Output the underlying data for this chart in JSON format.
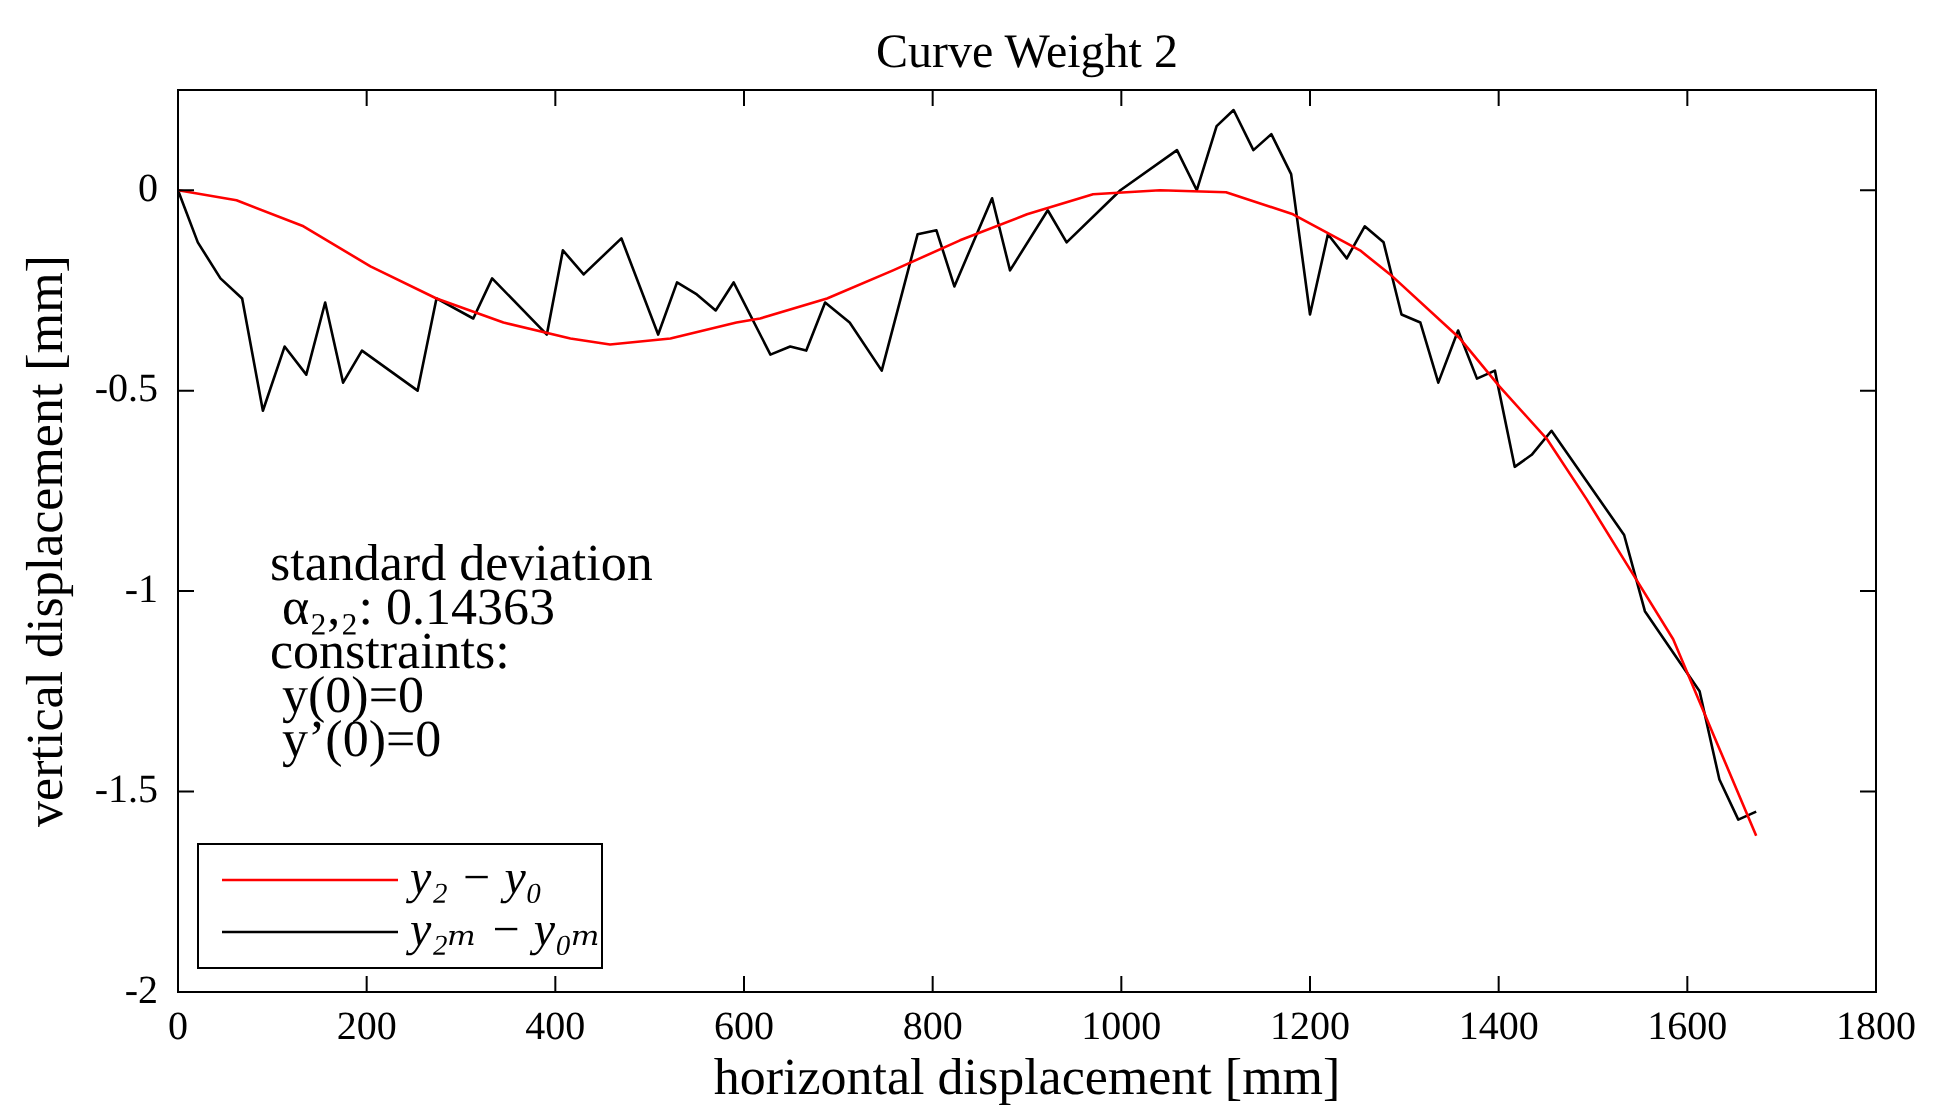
{
  "chart_data": {
    "type": "line",
    "title": "Curve Weight 2",
    "xlabel": "horizontal displacement [mm]",
    "ylabel": "vertical displacement [mm]",
    "xlim": [
      0,
      1800
    ],
    "ylim": [
      -2,
      0.25
    ],
    "xticks": [
      0,
      200,
      400,
      600,
      800,
      1000,
      1200,
      1400,
      1600,
      1800
    ],
    "yticks": [
      -2,
      -1.5,
      -1,
      -0.5,
      0
    ],
    "grid": false,
    "legend": "bottom left",
    "marker": "none",
    "line_style": "solid",
    "annotations": [
      "standard deviation",
      "α₂,₂: 0.14363",
      "constraints:",
      "y(0)=0",
      "y’(0)=0"
    ],
    "series": [
      {
        "name": "y₂ − y₀",
        "color": "#ff0000",
        "x": [
          0,
          62,
          133,
          204,
          274,
          345,
          416,
          458,
          522,
          592,
          617,
          688,
          758,
          829,
          900,
          970,
          1041,
          1111,
          1182,
          1253,
          1285,
          1359,
          1401,
          1451,
          1493,
          1543,
          1585,
          1628,
          1673
        ],
        "values": [
          0,
          -0.025,
          -0.09,
          -0.19,
          -0.27,
          -0.33,
          -0.37,
          -0.385,
          -0.37,
          -0.33,
          -0.32,
          -0.27,
          -0.2,
          -0.125,
          -0.06,
          -0.01,
          0,
          -0.005,
          -0.06,
          -0.15,
          -0.21,
          -0.37,
          -0.49,
          -0.62,
          -0.77,
          -0.96,
          -1.12,
          -1.36,
          -1.61
        ]
      },
      {
        "name": "y₂ₘ − y₀ₘ",
        "color": "#000000",
        "x": [
          0,
          21,
          45,
          68,
          90,
          113,
          136,
          156,
          175,
          195,
          254,
          274,
          313,
          333,
          391,
          408,
          430,
          470,
          509,
          529,
          550,
          570,
          589,
          628,
          649,
          666,
          686,
          712,
          746,
          784,
          804,
          823,
          863,
          882,
          922,
          942,
          999,
          1059,
          1080,
          1101,
          1119,
          1140,
          1159,
          1180,
          1200,
          1219,
          1239,
          1258,
          1278,
          1297,
          1317,
          1336,
          1357,
          1377,
          1396,
          1417,
          1435,
          1456,
          1533,
          1555,
          1613,
          1634,
          1654,
          1673
        ],
        "values": [
          0,
          -0.13,
          -0.22,
          -0.27,
          -0.55,
          -0.39,
          -0.46,
          -0.28,
          -0.48,
          -0.4,
          -0.5,
          -0.27,
          -0.32,
          -0.22,
          -0.36,
          -0.15,
          -0.21,
          -0.12,
          -0.36,
          -0.23,
          -0.26,
          -0.3,
          -0.23,
          -0.41,
          -0.39,
          -0.4,
          -0.28,
          -0.33,
          -0.45,
          -0.11,
          -0.1,
          -0.24,
          -0.02,
          -0.2,
          -0.05,
          -0.13,
          0,
          0.1,
          0,
          0.16,
          0.2,
          0.1,
          0.14,
          0.04,
          -0.31,
          -0.11,
          -0.17,
          -0.09,
          -0.13,
          -0.31,
          -0.33,
          -0.48,
          -0.35,
          -0.47,
          -0.45,
          -0.69,
          -0.66,
          -0.6,
          -0.86,
          -1.05,
          -1.25,
          -1.47,
          -1.57,
          -1.55
        ]
      }
    ]
  }
}
